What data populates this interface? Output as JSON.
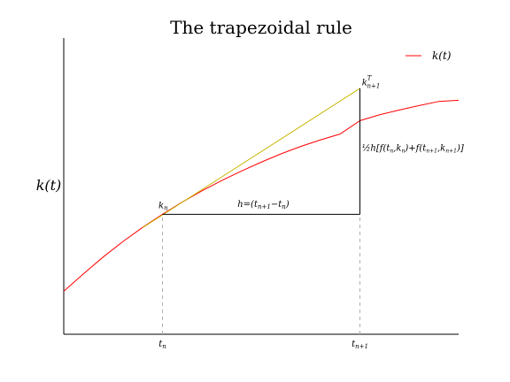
{
  "chart_data": {
    "type": "line",
    "title": "The trapezoidal rule",
    "ylabel": "k(t)",
    "xlim": [
      0,
      1
    ],
    "ylim": [
      0,
      1
    ],
    "grid": false,
    "legend": {
      "position": "top-right",
      "entries": [
        {
          "label": "k(t)",
          "color": "#ff0000"
        }
      ]
    },
    "x_ticks": [
      {
        "label": "t_n",
        "value": 0.25
      },
      {
        "label": "t_n+1",
        "value": 0.75
      }
    ],
    "series": [
      {
        "name": "k(t)",
        "color": "#ff0000",
        "x": [
          0.0,
          0.05,
          0.1,
          0.15,
          0.2,
          0.25,
          0.3,
          0.35,
          0.4,
          0.45,
          0.5,
          0.55,
          0.6,
          0.65,
          0.7,
          0.75,
          0.8,
          0.85,
          0.9,
          0.95,
          1.0
        ],
        "y": [
          0.145,
          0.204,
          0.261,
          0.313,
          0.361,
          0.405,
          0.446,
          0.484,
          0.519,
          0.551,
          0.581,
          0.609,
          0.634,
          0.656,
          0.676,
          0.721,
          0.741,
          0.757,
          0.772,
          0.786,
          0.79
        ]
      }
    ],
    "tangent_line": {
      "color": "#c8b400",
      "from": [
        0.2,
        0.36
      ],
      "to": [
        0.75,
        0.83
      ]
    },
    "segments": [
      {
        "from": [
          0.25,
          0.405
        ],
        "to": [
          0.75,
          0.405
        ],
        "color": "#000000"
      },
      {
        "from": [
          0.75,
          0.405
        ],
        "to": [
          0.75,
          0.83
        ],
        "color": "#000000"
      }
    ],
    "guides": [
      {
        "from": [
          0.25,
          0.0
        ],
        "to": [
          0.25,
          0.405
        ],
        "color": "#b0b0b0",
        "style": "dashed"
      },
      {
        "from": [
          0.75,
          0.0
        ],
        "to": [
          0.75,
          0.405
        ],
        "color": "#b0b0b0",
        "style": "dashed"
      }
    ],
    "annotations": [
      {
        "text": "k_n",
        "at": [
          0.24,
          0.425
        ]
      },
      {
        "text": "k^T_{n+1}",
        "at": [
          0.755,
          0.84
        ]
      },
      {
        "text": "h=(t_{n+1}−t_n)",
        "at": [
          0.44,
          0.43
        ]
      },
      {
        "text": "½h[f(t_n,k_n)+f(t_{n+1},k_{n+1})]",
        "at": [
          0.755,
          0.62
        ]
      }
    ]
  }
}
